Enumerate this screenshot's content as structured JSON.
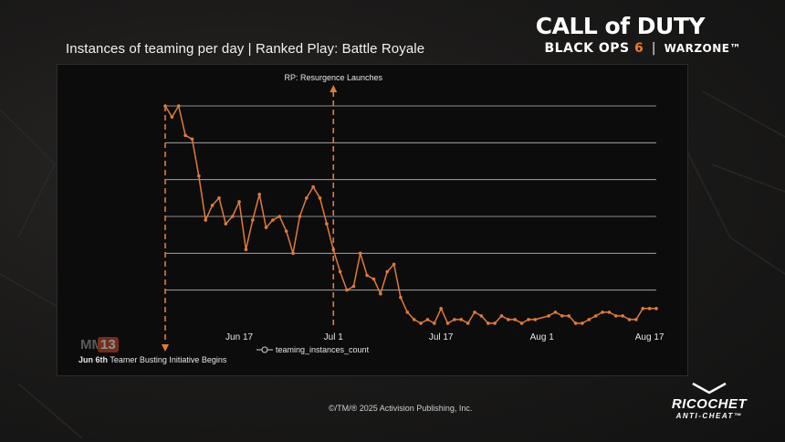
{
  "title": "Instances of teaming per day | Ranked Play: Battle Royale",
  "logo": {
    "line1": "CALL of DUTY",
    "line2_a": "BLACK OPS",
    "line2_six": "6",
    "line2_sep": "|",
    "line2_b": "WARZONE™"
  },
  "copyright": "©/TM/® 2025 Activision Publishing, Inc.",
  "ricochet": {
    "name": "RICOCHET",
    "sub": "ANTI-CHEAT™"
  },
  "watermark": {
    "text": "MM",
    "num": "13"
  },
  "colors": {
    "line": "#e07b39",
    "grid": "#d9d9d9",
    "panel": "#0c0c0c"
  },
  "chart_data": {
    "type": "line",
    "title": "Instances of teaming per day | Ranked Play: Battle Royale",
    "xlabel": "",
    "ylabel": "",
    "y_tick_labels_shown": false,
    "grid": true,
    "legend": "bottom-center",
    "x_ticks": [
      "Jun 17",
      "Jul 1",
      "Jul 17",
      "Aug 1",
      "Aug 17"
    ],
    "x_tick_day_index": [
      11,
      25,
      41,
      56,
      72
    ],
    "ylim": [
      0,
      6
    ],
    "series": [
      {
        "name": "teaming_instances_count",
        "x_day_index": [
          0,
          1,
          2,
          3,
          4,
          5,
          6,
          7,
          8,
          9,
          10,
          11,
          12,
          13,
          14,
          15,
          16,
          17,
          18,
          19,
          20,
          21,
          22,
          23,
          24,
          25,
          26,
          27,
          28,
          29,
          30,
          31,
          32,
          33,
          34,
          35,
          36,
          37,
          38,
          39,
          40,
          41,
          42,
          43,
          44,
          45,
          46,
          47,
          48,
          49,
          50,
          51,
          52,
          53,
          54,
          55,
          57,
          58,
          59,
          60,
          61,
          62,
          63,
          64,
          65,
          66,
          67,
          68,
          69,
          70,
          71,
          72,
          73
        ],
        "values": [
          6.0,
          5.7,
          6.0,
          5.2,
          5.1,
          4.1,
          2.9,
          3.3,
          3.5,
          2.8,
          3.0,
          3.4,
          2.1,
          2.9,
          3.6,
          2.7,
          2.9,
          3.0,
          2.6,
          2.0,
          3.0,
          3.5,
          3.8,
          3.5,
          2.8,
          2.1,
          1.5,
          1.0,
          1.1,
          2.0,
          1.4,
          1.3,
          0.9,
          1.5,
          1.7,
          0.8,
          0.4,
          0.2,
          0.1,
          0.2,
          0.1,
          0.5,
          0.1,
          0.2,
          0.2,
          0.1,
          0.4,
          0.3,
          0.1,
          0.1,
          0.3,
          0.2,
          0.2,
          0.1,
          0.2,
          0.2,
          0.3,
          0.4,
          0.3,
          0.3,
          0.1,
          0.1,
          0.2,
          0.3,
          0.4,
          0.4,
          0.3,
          0.3,
          0.2,
          0.2,
          0.5,
          0.5,
          0.5
        ]
      }
    ],
    "annotations": [
      {
        "text": "RP: Resurgence Launches",
        "day_index": 25
      },
      {
        "bold": "Jun 6th",
        "text": " Teamer Busting Initiative Begins",
        "day_index": 0
      }
    ]
  }
}
